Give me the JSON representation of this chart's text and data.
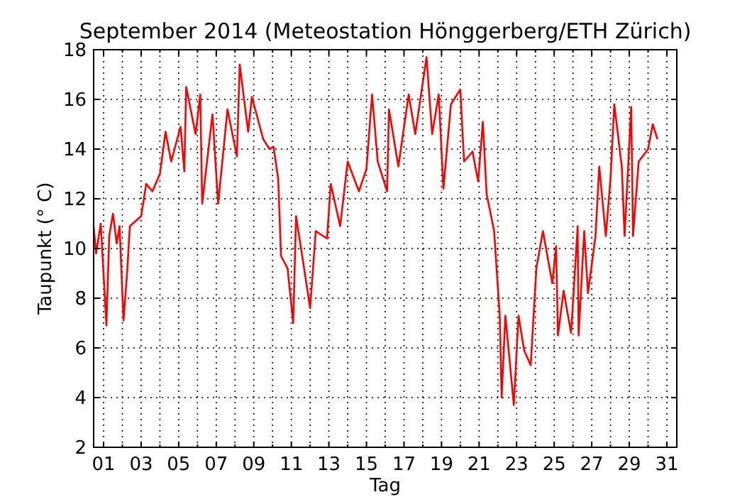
{
  "chart_data": {
    "type": "line",
    "title": "September 2014  (Meteostation Hönggerberg/ETH Zürich)",
    "xlabel": "Tag",
    "ylabel": "Taupunkt (° C)",
    "xlim": [
      0.47,
      31.53
    ],
    "ylim": [
      2,
      18
    ],
    "xticks": [
      {
        "value": 1,
        "label": "01"
      },
      {
        "value": 2,
        "label": null
      },
      {
        "value": 3,
        "label": "03"
      },
      {
        "value": 4,
        "label": null
      },
      {
        "value": 5,
        "label": "05"
      },
      {
        "value": 6,
        "label": null
      },
      {
        "value": 7,
        "label": "07"
      },
      {
        "value": 8,
        "label": null
      },
      {
        "value": 9,
        "label": "09"
      },
      {
        "value": 10,
        "label": null
      },
      {
        "value": 11,
        "label": "11"
      },
      {
        "value": 12,
        "label": null
      },
      {
        "value": 13,
        "label": "13"
      },
      {
        "value": 14,
        "label": null
      },
      {
        "value": 15,
        "label": "15"
      },
      {
        "value": 16,
        "label": null
      },
      {
        "value": 17,
        "label": "17"
      },
      {
        "value": 18,
        "label": null
      },
      {
        "value": 19,
        "label": "19"
      },
      {
        "value": 20,
        "label": null
      },
      {
        "value": 21,
        "label": "21"
      },
      {
        "value": 22,
        "label": null
      },
      {
        "value": 23,
        "label": "23"
      },
      {
        "value": 24,
        "label": null
      },
      {
        "value": 25,
        "label": "25"
      },
      {
        "value": 26,
        "label": null
      },
      {
        "value": 27,
        "label": "27"
      },
      {
        "value": 28,
        "label": null
      },
      {
        "value": 29,
        "label": "29"
      },
      {
        "value": 30,
        "label": null
      },
      {
        "value": 31,
        "label": "31"
      }
    ],
    "yticks": [
      2,
      4,
      6,
      8,
      10,
      12,
      14,
      16,
      18
    ],
    "grid": true,
    "line_style": "dotted",
    "marker": "none",
    "series": [
      {
        "color": "#ff0000",
        "line_style": "solid",
        "x": [
          0.47,
          0.6,
          0.85,
          1.15,
          1.3,
          1.5,
          1.7,
          1.85,
          2.06,
          2.25,
          2.4,
          3.0,
          3.27,
          3.6,
          4.0,
          4.3,
          4.6,
          5.1,
          5.3,
          5.4,
          5.9,
          6.15,
          6.25,
          6.8,
          7.1,
          7.6,
          8.1,
          8.25,
          8.7,
          8.9,
          9.5,
          9.84,
          10.05,
          10.3,
          10.45,
          10.8,
          11.1,
          11.25,
          11.6,
          12.0,
          12.3,
          12.9,
          13.1,
          13.6,
          14.0,
          14.6,
          15.0,
          15.3,
          15.6,
          16.1,
          16.2,
          16.7,
          17.25,
          17.6,
          18.2,
          18.5,
          18.85,
          19.1,
          19.5,
          20.0,
          20.2,
          20.65,
          20.95,
          21.2,
          21.4,
          21.8,
          22.1,
          22.2,
          22.4,
          22.85,
          23.1,
          23.4,
          23.75,
          24.05,
          24.4,
          24.9,
          25.1,
          25.2,
          25.5,
          25.9,
          26.25,
          26.3,
          26.6,
          26.8,
          27.2,
          27.4,
          27.75,
          28.0,
          28.2,
          28.6,
          28.75,
          29.1,
          29.2,
          29.5,
          30.0,
          30.25,
          30.5
        ],
        "values": [
          10.9,
          9.8,
          11.0,
          6.9,
          10.5,
          11.4,
          10.2,
          10.9,
          7.1,
          9.0,
          10.9,
          11.3,
          12.6,
          12.3,
          13.0,
          14.7,
          13.5,
          14.9,
          13.1,
          16.5,
          14.6,
          16.2,
          11.8,
          15.4,
          11.8,
          15.6,
          13.7,
          17.4,
          14.7,
          16.1,
          14.4,
          14.0,
          14.1,
          12.8,
          9.7,
          9.2,
          7.0,
          11.3,
          9.6,
          7.6,
          10.7,
          10.4,
          12.6,
          10.9,
          13.5,
          12.3,
          13.2,
          16.2,
          13.5,
          12.3,
          15.6,
          13.3,
          16.2,
          14.6,
          17.7,
          14.6,
          16.2,
          12.4,
          15.8,
          16.4,
          13.5,
          13.9,
          12.7,
          15.1,
          12.2,
          10.7,
          7.3,
          4.0,
          7.3,
          3.7,
          7.3,
          5.9,
          5.3,
          9.2,
          10.7,
          8.6,
          10.1,
          6.5,
          8.3,
          6.6,
          10.9,
          6.5,
          10.7,
          8.2,
          10.5,
          13.3,
          10.5,
          12.8,
          15.8,
          13.3,
          10.5,
          15.7,
          10.5,
          13.5,
          14.0,
          15.0,
          14.4
        ]
      }
    ]
  }
}
